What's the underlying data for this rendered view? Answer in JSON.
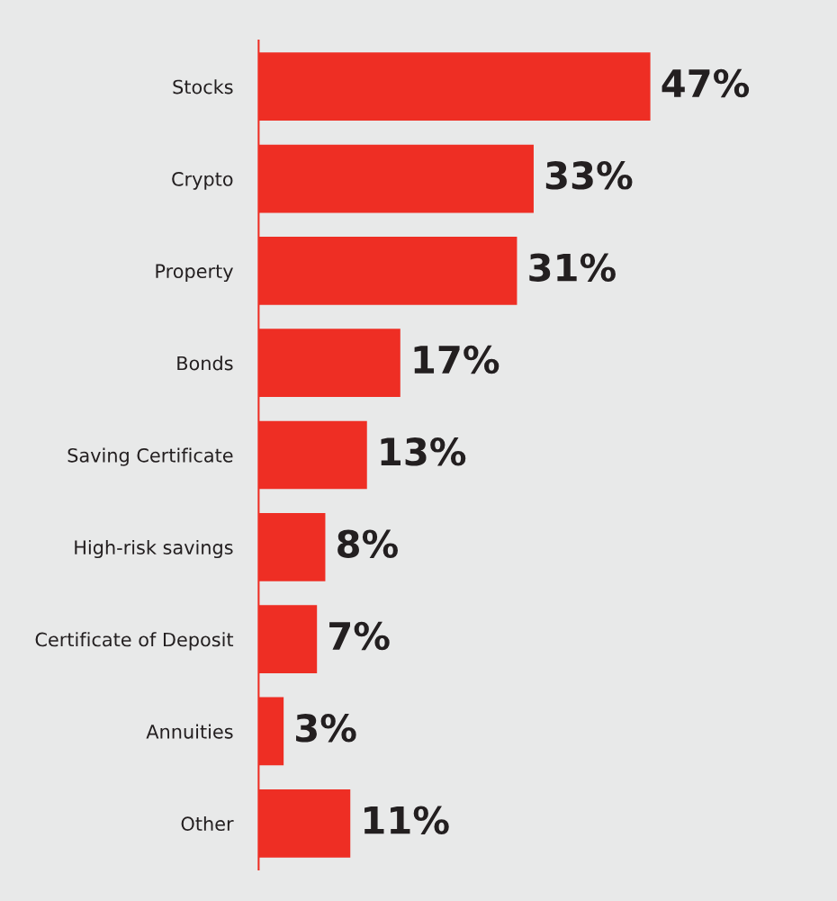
{
  "chart_data": {
    "type": "bar",
    "orientation": "horizontal",
    "categories": [
      "Stocks",
      "Crypto",
      "Property",
      "Bonds",
      "Saving Certificate",
      "High-risk savings",
      "Certificate of Deposit",
      "Annuities",
      "Other"
    ],
    "values": [
      47,
      33,
      31,
      17,
      13,
      8,
      7,
      3,
      11
    ],
    "value_labels": [
      "47%",
      "33%",
      "31%",
      "17%",
      "13%",
      "8%",
      "7%",
      "3%",
      "11%"
    ],
    "color": "#ee2e24",
    "grid": false,
    "legend": false
  }
}
